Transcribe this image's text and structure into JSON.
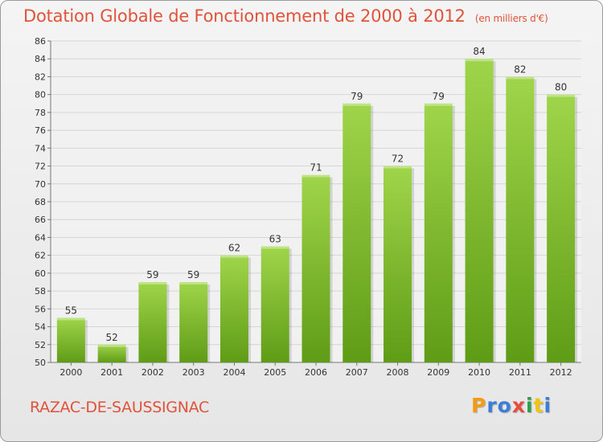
{
  "title": "Dotation Globale de Fonctionnement de 2000 à 2012",
  "unit": "(en milliers d'€)",
  "commune": "RAZAC-DE-SAUSSIGNAC",
  "brand": {
    "letters": [
      "P",
      "r",
      "o",
      "x",
      "i",
      "t",
      "i"
    ],
    "colors": [
      "#f39c12",
      "#3b7dd8",
      "#3b7dd8",
      "#e74c3c",
      "#2e9e4a",
      "#f1c40f",
      "#3b7dd8"
    ]
  },
  "colors": {
    "title": "#e0533a",
    "bar_top": "#9fd54a",
    "bar_bottom": "#5f9c16",
    "grid": "#d6d6d6"
  },
  "chart_data": {
    "type": "bar",
    "categories": [
      "2000",
      "2001",
      "2002",
      "2003",
      "2004",
      "2005",
      "2006",
      "2007",
      "2008",
      "2009",
      "2010",
      "2011",
      "2012"
    ],
    "values": [
      55,
      52,
      59,
      59,
      62,
      63,
      71,
      79,
      72,
      79,
      84,
      82,
      80
    ],
    "ylim": [
      50,
      86
    ],
    "yticks": [
      50,
      52,
      54,
      56,
      58,
      60,
      62,
      64,
      66,
      68,
      70,
      72,
      74,
      76,
      78,
      80,
      82,
      84,
      86
    ],
    "grid": true,
    "data_labels": true
  }
}
